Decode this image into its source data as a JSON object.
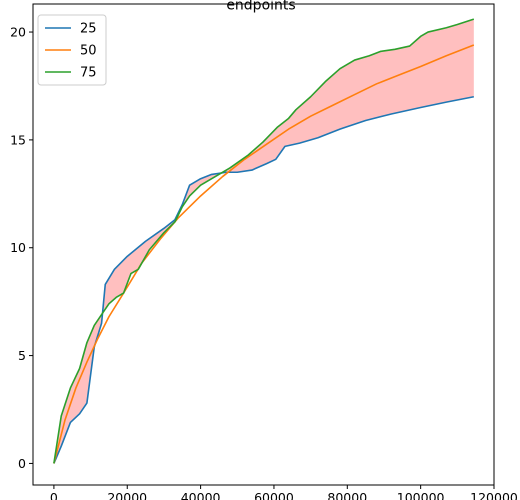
{
  "chart_data": {
    "type": "line",
    "title": "endpoints",
    "xlabel": "",
    "ylabel": "",
    "xlim": [
      -5700,
      120000
    ],
    "ylim": [
      -1.0,
      21.3
    ],
    "xticks": [
      0,
      20000,
      40000,
      60000,
      80000,
      100000,
      120000
    ],
    "xtick_labels": [
      "0",
      "20000",
      "40000",
      "60000",
      "80000",
      "100000",
      "120000"
    ],
    "yticks": [
      0,
      5,
      10,
      15,
      20
    ],
    "ytick_labels": [
      "0",
      "5",
      "10",
      "15",
      "20"
    ],
    "grid": false,
    "legend_position": "top-left",
    "fill_between": {
      "lower_series": "25",
      "upper_series": "75",
      "color": "#ffbfbf"
    },
    "series": [
      {
        "name": "25",
        "color": "#1f77b4",
        "x": [
          0,
          2000,
          4500,
          7000,
          9000,
          11000,
          13000,
          14000,
          16500,
          20000,
          25000,
          30000,
          33000,
          35000,
          37000,
          40000,
          43000,
          47000,
          50000,
          54000,
          58000,
          60500,
          63000,
          67000,
          72000,
          78000,
          85000,
          92000,
          100000,
          107000,
          114500
        ],
        "y": [
          0,
          0.8,
          1.9,
          2.3,
          2.8,
          5.4,
          6.5,
          8.3,
          9.0,
          9.6,
          10.3,
          10.9,
          11.3,
          12.0,
          12.9,
          13.2,
          13.4,
          13.5,
          13.5,
          13.6,
          13.9,
          14.1,
          14.7,
          14.85,
          15.1,
          15.5,
          15.9,
          16.2,
          16.5,
          16.75,
          17.0
        ]
      },
      {
        "name": "50",
        "color": "#ff7f0e",
        "x": [
          0,
          3000,
          6000,
          9000,
          12000,
          15000,
          19000,
          24000,
          29000,
          34000,
          40000,
          46000,
          52000,
          58000,
          64000,
          70000,
          76000,
          82000,
          88000,
          94000,
          100000,
          107000,
          114500
        ],
        "y": [
          0,
          2.0,
          3.5,
          4.7,
          5.8,
          6.8,
          7.9,
          9.3,
          10.4,
          11.4,
          12.4,
          13.3,
          14.1,
          14.8,
          15.5,
          16.1,
          16.6,
          17.1,
          17.6,
          18.0,
          18.4,
          18.9,
          19.4
        ]
      },
      {
        "name": "75",
        "color": "#2ca02c",
        "x": [
          0,
          2000,
          4500,
          7000,
          9000,
          11000,
          13000,
          15000,
          17000,
          19000,
          21000,
          23000,
          26000,
          30000,
          33000,
          35000,
          37000,
          40000,
          44000,
          48000,
          53000,
          57000,
          61000,
          64000,
          66000,
          70000,
          74000,
          78000,
          82000,
          86000,
          89000,
          93000,
          97000,
          100000,
          102000,
          107000,
          110000,
          114500
        ],
        "y": [
          0,
          2.2,
          3.5,
          4.4,
          5.6,
          6.4,
          6.9,
          7.4,
          7.7,
          7.9,
          8.8,
          9.0,
          9.9,
          10.7,
          11.2,
          11.9,
          12.4,
          12.9,
          13.3,
          13.7,
          14.3,
          14.9,
          15.6,
          16.0,
          16.4,
          17.0,
          17.7,
          18.3,
          18.7,
          18.9,
          19.1,
          19.2,
          19.35,
          19.8,
          20.0,
          20.2,
          20.35,
          20.6
        ]
      }
    ]
  }
}
